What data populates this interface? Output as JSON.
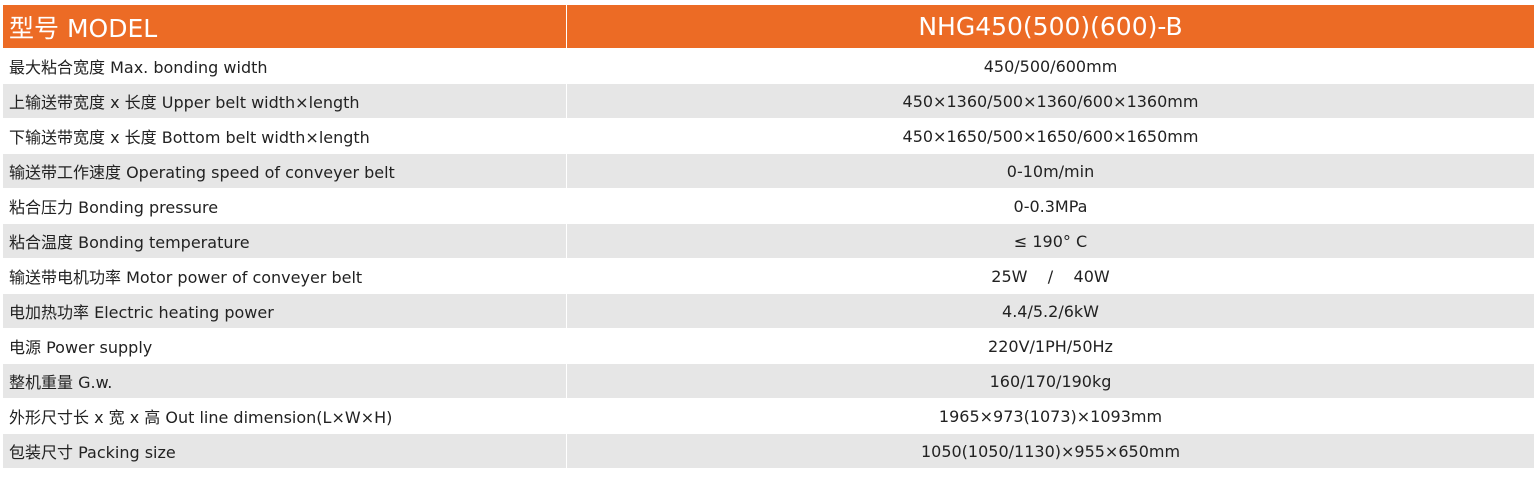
{
  "table": {
    "header": [
      "型号 MODEL",
      "NHG450(500)(600)-B"
    ],
    "rows": [
      [
        "最大粘合宽度 Max. bonding width",
        "450/500/600mm"
      ],
      [
        "上输送带宽度 x 长度 Upper belt width×length",
        "450×1360/500×1360/600×1360mm"
      ],
      [
        "下输送带宽度 x 长度 Bottom belt width×length",
        "450×1650/500×1650/600×1650mm"
      ],
      [
        "输送带工作速度 Operating speed of conveyer belt",
        "0-10m/min"
      ],
      [
        "粘合压力 Bonding pressure",
        "0-0.3MPa"
      ],
      [
        "粘合温度 Bonding temperature",
        "≤ 190° C"
      ],
      [
        "输送带电机功率 Motor power of conveyer belt",
        "25W    /    40W"
      ],
      [
        "电加热功率 Electric heating power",
        "4.4/5.2/6kW"
      ],
      [
        "电源 Power supply",
        "220V/1PH/50Hz"
      ],
      [
        "整机重量 G.w.",
        "160/170/190kg"
      ],
      [
        "外形尺寸长 x 宽 x 高 Out line dimension(L×W×H)",
        "1965×973(1073)×1093mm"
      ],
      [
        "包装尺寸 Packing size",
        "1050(1050/1130)×955×650mm"
      ]
    ]
  }
}
